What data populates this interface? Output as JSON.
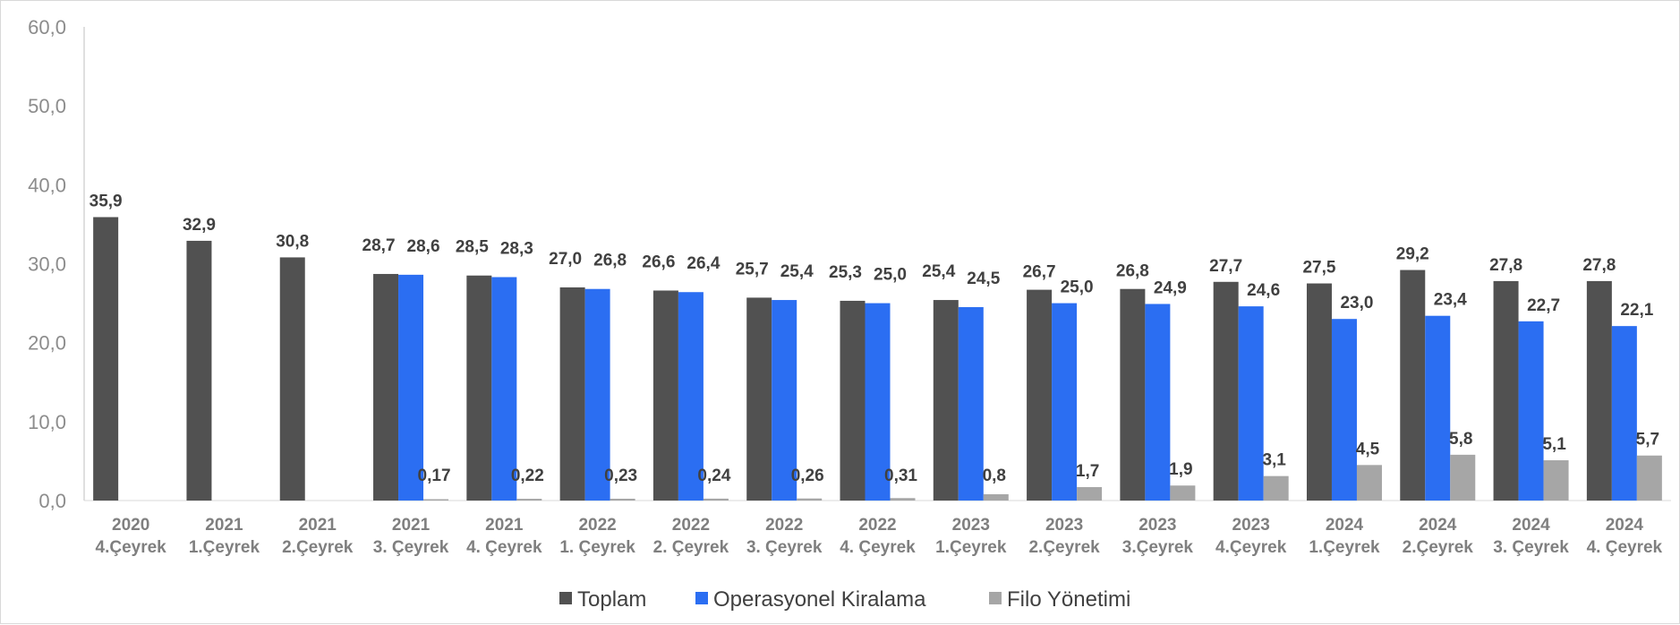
{
  "chart_data": {
    "type": "bar",
    "title": "",
    "xlabel": "",
    "ylabel": "",
    "ylim": [
      0,
      60
    ],
    "yticks": [
      "0,0",
      "10,0",
      "20,0",
      "30,0",
      "40,0",
      "50,0",
      "60,0"
    ],
    "grid": false,
    "legend_position": "bottom",
    "categories": [
      [
        "2020",
        "4.Çeyrek"
      ],
      [
        "2021",
        "1.Çeyrek"
      ],
      [
        "2021",
        "2.Çeyrek"
      ],
      [
        "2021",
        "3. Çeyrek"
      ],
      [
        "2021",
        "4. Çeyrek"
      ],
      [
        "2022",
        "1. Çeyrek"
      ],
      [
        "2022",
        "2. Çeyrek"
      ],
      [
        "2022",
        "3. Çeyrek"
      ],
      [
        "2022",
        "4. Çeyrek"
      ],
      [
        "2023",
        "1.Çeyrek"
      ],
      [
        "2023",
        "2.Çeyrek"
      ],
      [
        "2023",
        "3.Çeyrek"
      ],
      [
        "2023",
        "4.Çeyrek"
      ],
      [
        "2024",
        "1.Çeyrek"
      ],
      [
        "2024",
        "2.Çeyrek"
      ],
      [
        "2024",
        "3. Çeyrek"
      ],
      [
        "2024",
        "4. Çeyrek"
      ]
    ],
    "series": [
      {
        "name": "Toplam",
        "color": "#515151",
        "values": [
          35.9,
          32.9,
          30.8,
          28.7,
          28.5,
          27.0,
          26.6,
          25.7,
          25.3,
          25.4,
          26.7,
          26.8,
          27.7,
          27.5,
          29.2,
          27.8,
          27.8
        ],
        "labels": [
          "35,9",
          "32,9",
          "30,8",
          "28,7",
          "28,5",
          "27,0",
          "26,6",
          "25,7",
          "25,3",
          "25,4",
          "26,7",
          "26,8",
          "27,7",
          "27,5",
          "29,2",
          "27,8",
          "27,8"
        ]
      },
      {
        "name": "Operasyonel Kiralama",
        "color": "#2b6ef2",
        "values": [
          null,
          null,
          null,
          28.6,
          28.3,
          26.8,
          26.4,
          25.4,
          25.0,
          24.5,
          25.0,
          24.9,
          24.6,
          23.0,
          23.4,
          22.7,
          22.1
        ],
        "labels": [
          "",
          "",
          "",
          "28,6",
          "28,3",
          "26,8",
          "26,4",
          "25,4",
          "25,0",
          "24,5",
          "25,0",
          "24,9",
          "24,6",
          "23,0",
          "23,4",
          "22,7",
          "22,1"
        ]
      },
      {
        "name": "Filo Yönetimi",
        "color": "#a6a6a6",
        "values": [
          null,
          null,
          null,
          0.17,
          0.22,
          0.23,
          0.24,
          0.26,
          0.31,
          0.8,
          1.7,
          1.9,
          3.1,
          4.5,
          5.8,
          5.1,
          5.7
        ],
        "labels": [
          "",
          "",
          "",
          "0,17",
          "0,22",
          "0,23",
          "0,24",
          "0,26",
          "0,31",
          "0,8",
          "1,7",
          "1,9",
          "3,1",
          "4,5",
          "5,8",
          "5,1",
          "5,7"
        ]
      }
    ]
  }
}
